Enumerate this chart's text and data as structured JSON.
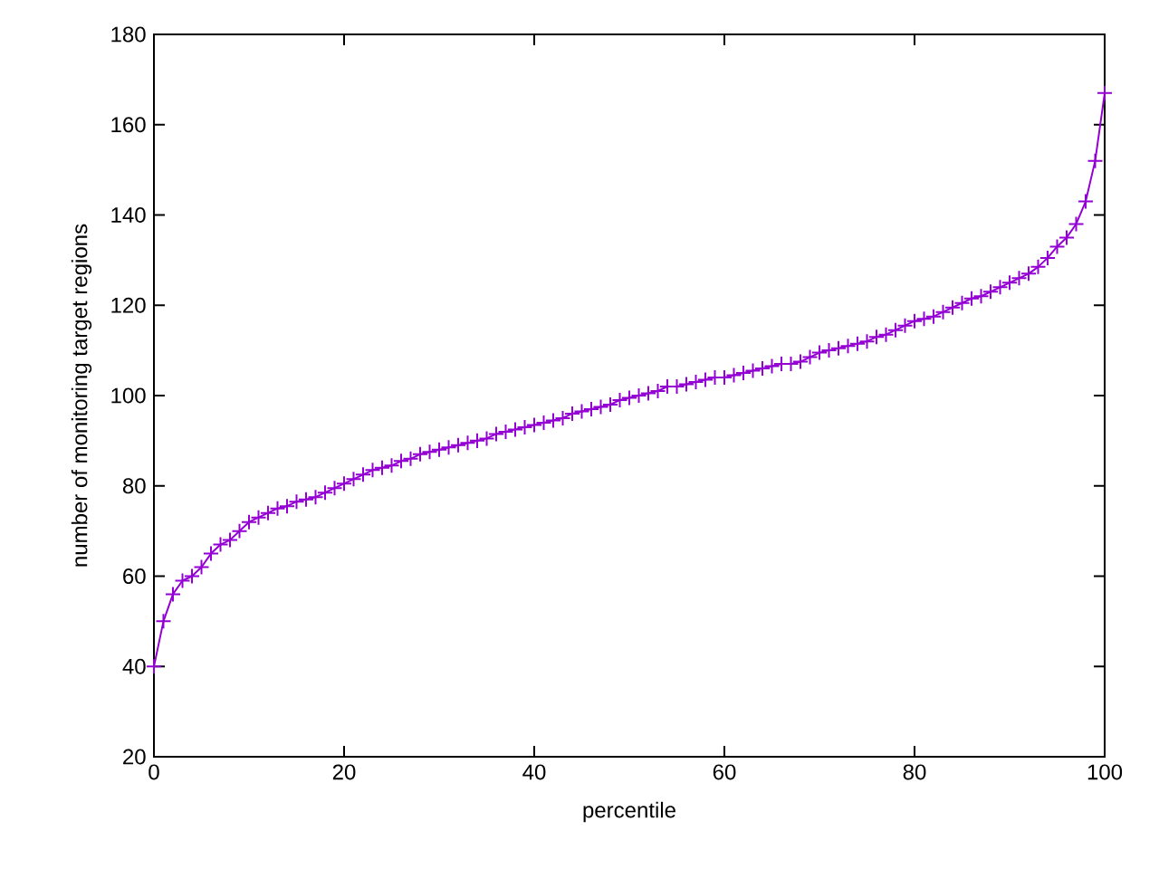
{
  "chart_data": {
    "type": "line",
    "xlabel": "percentile",
    "ylabel": "number of monitoring target regions",
    "x": [
      0,
      1,
      2,
      3,
      4,
      5,
      6,
      7,
      8,
      9,
      10,
      11,
      12,
      13,
      14,
      15,
      16,
      17,
      18,
      19,
      20,
      21,
      22,
      23,
      24,
      25,
      26,
      27,
      28,
      29,
      30,
      31,
      32,
      33,
      34,
      35,
      36,
      37,
      38,
      39,
      40,
      41,
      42,
      43,
      44,
      45,
      46,
      47,
      48,
      49,
      50,
      51,
      52,
      53,
      54,
      55,
      56,
      57,
      58,
      59,
      60,
      61,
      62,
      63,
      64,
      65,
      66,
      67,
      68,
      69,
      70,
      71,
      72,
      73,
      74,
      75,
      76,
      77,
      78,
      79,
      80,
      81,
      82,
      83,
      84,
      85,
      86,
      87,
      88,
      89,
      90,
      91,
      92,
      93,
      94,
      95,
      96,
      97,
      98,
      99,
      100
    ],
    "series": [
      {
        "color": "#9400d3",
        "values": [
          40,
          50,
          56,
          59,
          60,
          62,
          65,
          67,
          68,
          70,
          72,
          73,
          74,
          75,
          75.5,
          76.5,
          77,
          77.5,
          78.5,
          79.5,
          80.5,
          81.5,
          82.5,
          83.5,
          84,
          84.5,
          85.5,
          86,
          87,
          87.5,
          88,
          88.5,
          89,
          89.5,
          90,
          90.5,
          91.5,
          92,
          92.5,
          93,
          93.5,
          94,
          94.5,
          95,
          96,
          96.5,
          97,
          97.5,
          98,
          99,
          99.5,
          100,
          100.5,
          101,
          102,
          102,
          102.5,
          103,
          103.5,
          104,
          104,
          104.5,
          105,
          105.5,
          106,
          106.5,
          107,
          107,
          107.5,
          108.5,
          109.5,
          110,
          110.5,
          111,
          111.5,
          112,
          113,
          113.5,
          114.5,
          115.5,
          116.5,
          117,
          117.5,
          118.5,
          119.5,
          120.5,
          121.5,
          122,
          123,
          124,
          125,
          126,
          127,
          128.5,
          130.5,
          133,
          135,
          138,
          143,
          152,
          167
        ]
      }
    ],
    "xlim": [
      0,
      100
    ],
    "xticks": [
      0,
      20,
      40,
      60,
      80,
      100
    ],
    "ylim": [
      20,
      180
    ],
    "yticks": [
      20,
      40,
      60,
      80,
      100,
      120,
      140,
      160,
      180
    ],
    "marker": "cross",
    "line_style": "solid"
  }
}
